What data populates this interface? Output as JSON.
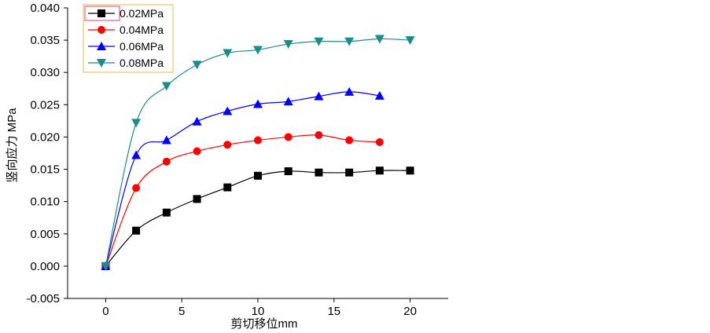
{
  "chart_data": {
    "type": "line",
    "title": "",
    "xlabel": "剪切移位mm",
    "ylabel": "竖向应力 MPa",
    "xlim": [
      -2.5,
      22.5
    ],
    "ylim": [
      -0.005,
      0.04
    ],
    "xticks": [
      0,
      5,
      10,
      15,
      20
    ],
    "xtick_labels": [
      "0",
      "5",
      "10",
      "15",
      "20"
    ],
    "yticks": [
      -0.005,
      0.0,
      0.005,
      0.01,
      0.015,
      0.02,
      0.025,
      0.03,
      0.035,
      0.04
    ],
    "ytick_labels": [
      "-0.005",
      "0.000",
      "0.005",
      "0.010",
      "0.015",
      "0.020",
      "0.025",
      "0.030",
      "0.035",
      "0.040"
    ],
    "grid": false,
    "legend_position": "top-left",
    "series": [
      {
        "name": "0.02MPa",
        "color": "#000000",
        "marker": "square",
        "x": [
          0,
          2,
          4,
          6,
          8,
          10,
          12,
          14,
          16,
          18,
          20
        ],
        "y": [
          0.0,
          0.0055,
          0.0083,
          0.0104,
          0.0122,
          0.014,
          0.0147,
          0.0145,
          0.0145,
          0.0148,
          0.0148
        ]
      },
      {
        "name": "0.04MPa",
        "color": "#ff0000",
        "marker": "circle",
        "x": [
          0,
          2,
          4,
          6,
          8,
          10,
          12,
          14,
          16,
          18
        ],
        "y": [
          0.0,
          0.0121,
          0.0162,
          0.0178,
          0.0188,
          0.0195,
          0.02,
          0.0203,
          0.0195,
          0.0192
        ]
      },
      {
        "name": "0.06MPa",
        "color": "#0000ff",
        "marker": "triangle-up",
        "x": [
          0,
          2,
          4,
          6,
          8,
          10,
          12,
          14,
          16,
          18
        ],
        "y": [
          0.0,
          0.0172,
          0.0195,
          0.0224,
          0.024,
          0.0251,
          0.0255,
          0.0263,
          0.027,
          0.0264
        ]
      },
      {
        "name": "0.08MPa",
        "color": "#1a8c8c",
        "marker": "triangle-down",
        "x": [
          0,
          2,
          4,
          6,
          8,
          10,
          12,
          14,
          16,
          18,
          20
        ],
        "y": [
          0.0,
          0.0222,
          0.0279,
          0.0312,
          0.033,
          0.0335,
          0.0344,
          0.0348,
          0.0348,
          0.0352,
          0.035
        ]
      }
    ]
  }
}
